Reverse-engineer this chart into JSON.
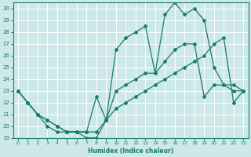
{
  "xlabel": "Humidex (Indice chaleur)",
  "bg_color": "#cce8e8",
  "grid_color": "#ffffff",
  "line_color": "#1a7a6e",
  "xlim": [
    -0.5,
    23.5
  ],
  "ylim": [
    19,
    30.5
  ],
  "xticks": [
    0,
    1,
    2,
    3,
    4,
    5,
    6,
    7,
    8,
    9,
    10,
    11,
    12,
    13,
    14,
    15,
    16,
    17,
    18,
    19,
    20,
    21,
    22,
    23
  ],
  "yticks": [
    19,
    20,
    21,
    22,
    23,
    24,
    25,
    26,
    27,
    28,
    29,
    30
  ],
  "line_max_x": [
    0,
    1,
    2,
    3,
    4,
    5,
    6,
    7,
    8,
    9,
    10,
    11,
    12,
    13,
    14,
    15,
    16,
    17,
    18,
    19,
    20,
    21,
    22,
    23
  ],
  "line_max_y": [
    23,
    22,
    21,
    20.5,
    20,
    19.5,
    19.5,
    19.5,
    22.5,
    20.5,
    26.5,
    27.5,
    28,
    28.5,
    24.5,
    29.5,
    30.5,
    29.5,
    30,
    29,
    25,
    23.5,
    23,
    23
  ],
  "line_avg_x": [
    0,
    1,
    2,
    3,
    4,
    5,
    6,
    7,
    8,
    9,
    10,
    11,
    12,
    13,
    14,
    15,
    16,
    17,
    18,
    19,
    20,
    21,
    22,
    23
  ],
  "line_avg_y": [
    23,
    22,
    21,
    20,
    19.5,
    19.5,
    19.5,
    19,
    19,
    20.5,
    23,
    23.5,
    24,
    24.5,
    24.5,
    25.5,
    26.5,
    27,
    27,
    22.5,
    23.5,
    23.5,
    23.5,
    23
  ],
  "line_min_x": [
    0,
    1,
    2,
    3,
    4,
    5,
    6,
    7,
    8,
    9,
    10,
    11,
    12,
    13,
    14,
    15,
    16,
    17,
    18,
    19,
    20,
    21,
    22,
    23
  ],
  "line_min_y": [
    23,
    22,
    21,
    20.5,
    20,
    19.5,
    19.5,
    19.5,
    19.5,
    20.5,
    21.5,
    22,
    22.5,
    23,
    23.5,
    24,
    24.5,
    25,
    25.5,
    26,
    27,
    27.5,
    22,
    23
  ]
}
